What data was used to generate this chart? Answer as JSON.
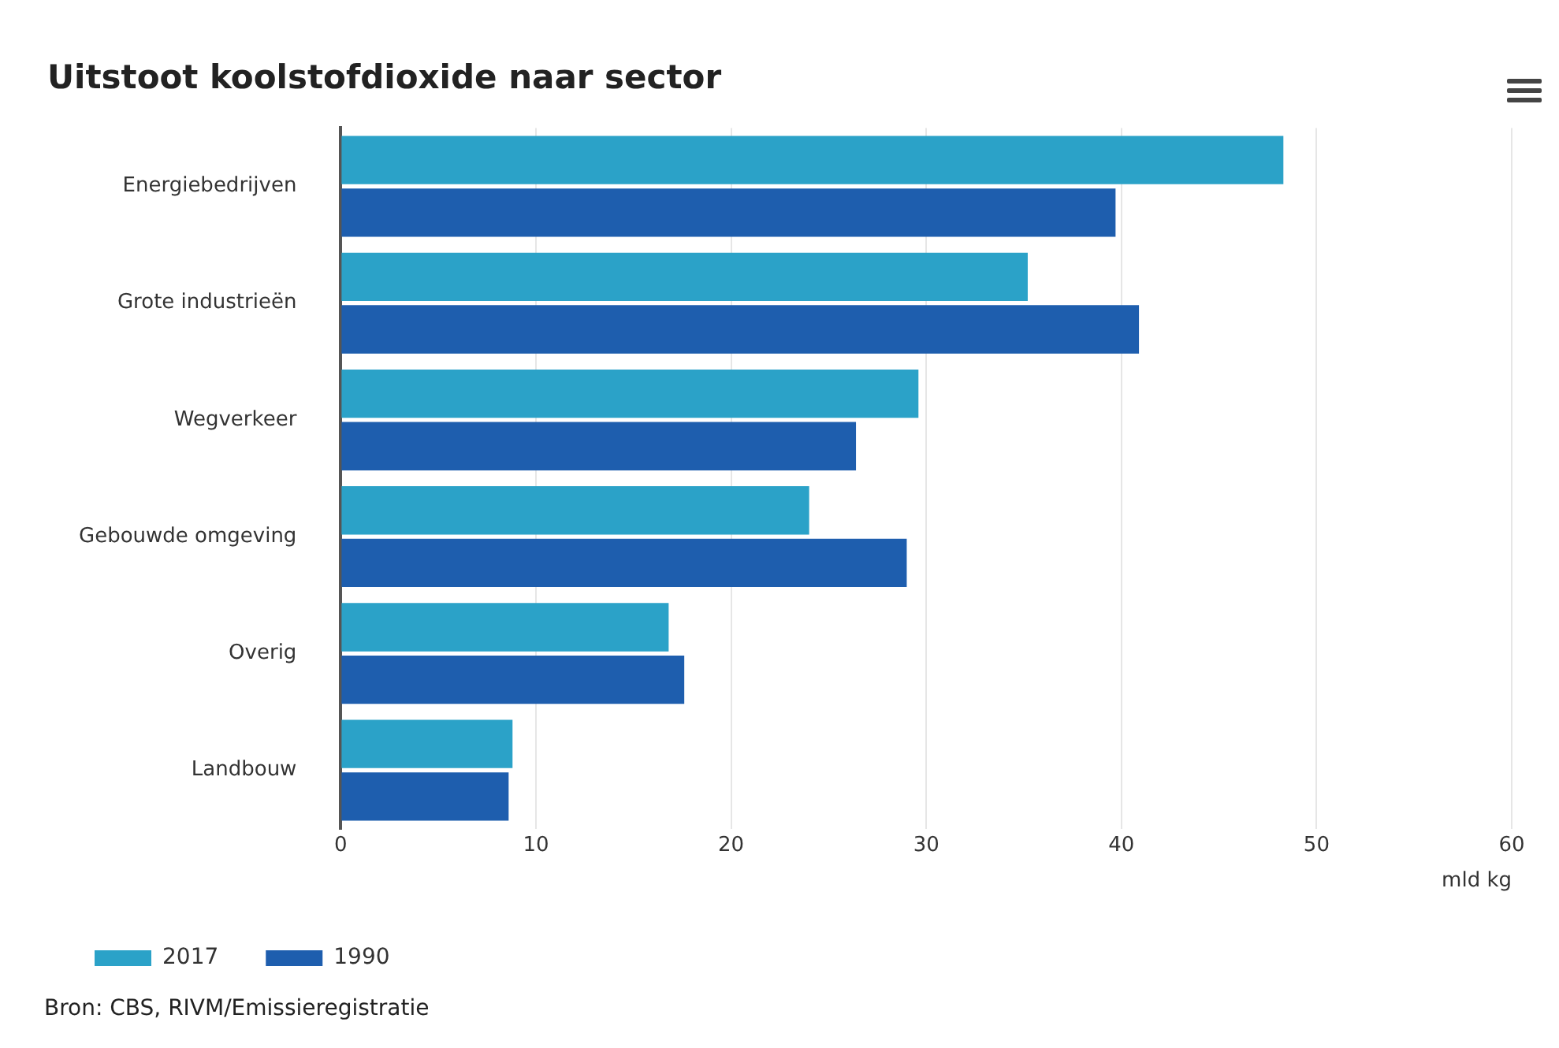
{
  "chart_data": {
    "type": "bar",
    "orientation": "horizontal",
    "title": "Uitstoot koolstofdioxide naar sector",
    "categories": [
      "Energiebedrijven",
      "Grote industrieën",
      "Wegverkeer",
      "Gebouwde omgeving",
      "Overig",
      "Landbouw"
    ],
    "series": [
      {
        "name": "2017",
        "color": "#2ba2c8",
        "values": [
          48.3,
          35.2,
          29.6,
          24.0,
          16.8,
          8.8
        ]
      },
      {
        "name": "1990",
        "color": "#1e5eae",
        "values": [
          39.7,
          40.9,
          26.4,
          29.0,
          17.6,
          8.6
        ]
      }
    ],
    "xlim": [
      0,
      60
    ],
    "xticks": [
      0,
      10,
      20,
      30,
      40,
      50,
      60
    ],
    "xlabel": "mld kg",
    "grid": "x",
    "legend": "bottom left",
    "annotations": [
      "Bron: CBS, RIVM/Emissieregistratie"
    ]
  }
}
